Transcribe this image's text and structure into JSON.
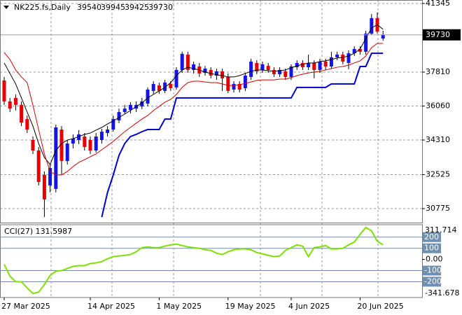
{
  "chart_data": [
    {
      "type": "candlestick",
      "title": "NK225.fs,Daily",
      "categories": [
        "27 Mar 2025",
        null,
        null,
        null,
        null,
        null,
        null,
        null,
        null,
        null,
        null,
        null,
        null,
        null,
        null,
        "14 Apr 2025",
        null,
        null,
        null,
        null,
        null,
        null,
        null,
        null,
        null,
        null,
        null,
        "1 May 2025",
        null,
        null,
        null,
        null,
        null,
        null,
        null,
        null,
        null,
        null,
        null,
        "19 May 2025",
        null,
        null,
        null,
        null,
        null,
        null,
        null,
        null,
        null,
        null,
        "4 Jun 2025",
        null,
        null,
        null,
        null,
        null,
        null,
        null,
        null,
        null,
        null,
        null,
        "20 Jun 2025",
        null,
        null,
        null,
        null
      ],
      "open": [
        37380,
        36300,
        36480,
        36120,
        35390,
        34310,
        33770,
        32510,
        31970,
        31790,
        34850,
        33230,
        34130,
        34310,
        34490,
        34310,
        33770,
        34310,
        34670,
        34850,
        35320,
        35750,
        35860,
        35930,
        36040,
        36190,
        36840,
        37120,
        36840,
        37200,
        37020,
        37920,
        38710,
        37920,
        38100,
        37770,
        37920,
        37630,
        37850,
        37560,
        36910,
        37200,
        36980,
        37560,
        38280,
        37920,
        38130,
        37920,
        37700,
        37850,
        37560,
        38060,
        38280,
        38060,
        38280,
        37920,
        38350,
        38100,
        38570,
        38710,
        38280,
        38780,
        39000,
        38860,
        39790,
        40590,
        39540
      ],
      "high": [
        37560,
        36480,
        36660,
        36300,
        35570,
        34490,
        33950,
        32690,
        33050,
        35100,
        35030,
        34310,
        34600,
        34820,
        34670,
        34490,
        34670,
        34890,
        35030,
        35570,
        35930,
        36120,
        36260,
        36300,
        36480,
        37020,
        37340,
        37270,
        37410,
        37340,
        38060,
        38860,
        38860,
        38350,
        38280,
        38130,
        38060,
        37990,
        37990,
        37740,
        37340,
        37340,
        37770,
        38500,
        38420,
        38350,
        38280,
        38060,
        38060,
        37990,
        38210,
        38420,
        38420,
        38710,
        38420,
        38500,
        38500,
        38860,
        38860,
        38860,
        38930,
        39140,
        39140,
        39940,
        40800,
        40880,
        39945
      ],
      "low": [
        36120,
        35750,
        35830,
        35030,
        34670,
        33590,
        31970,
        30340,
        31610,
        31610,
        32510,
        33050,
        33880,
        34100,
        33770,
        33590,
        33660,
        34130,
        34490,
        34740,
        35180,
        35650,
        35680,
        35750,
        35900,
        36040,
        36690,
        36690,
        36730,
        36840,
        36910,
        37770,
        37770,
        37740,
        37560,
        37630,
        37490,
        37410,
        36840,
        36730,
        36760,
        36760,
        36840,
        37410,
        37700,
        37770,
        37770,
        37560,
        37560,
        37410,
        37410,
        37920,
        37920,
        37920,
        37490,
        37770,
        37920,
        37990,
        38420,
        38210,
        37960,
        38640,
        38710,
        38710,
        39720,
        39800,
        39425
      ],
      "close": [
        36300,
        35930,
        36120,
        35210,
        34850,
        33770,
        32150,
        31250,
        32870,
        34960,
        33230,
        34130,
        34380,
        34600,
        33950,
        33770,
        34490,
        34740,
        34850,
        35390,
        35750,
        35930,
        36120,
        36120,
        36300,
        36910,
        37200,
        36840,
        37270,
        36980,
        37920,
        38750,
        37920,
        38210,
        37740,
        37990,
        37630,
        37850,
        37490,
        36840,
        37200,
        36910,
        37630,
        38350,
        37850,
        38210,
        37920,
        37700,
        37920,
        37560,
        38100,
        38280,
        38060,
        38280,
        37920,
        38350,
        38100,
        38570,
        38710,
        38350,
        38780,
        39000,
        38860,
        39790,
        40590,
        39900,
        39730
      ],
      "up_color": "#1414e6",
      "down_color": "#e60000",
      "wick_color": "#000000",
      "overlays": [
        {
          "color": "#000000",
          "line_width": 1,
          "values": [
            38280,
            37740,
            37200,
            36480,
            35750,
            35030,
            34130,
            33410,
            33050,
            33770,
            34130,
            34310,
            34380,
            34490,
            34600,
            34670,
            34820,
            34960,
            35140,
            35290,
            35470,
            35650,
            35830,
            36040,
            36220,
            36480,
            36660,
            36840,
            37020,
            37270,
            37630,
            37920,
            38060,
            37990,
            37920,
            37810,
            37740,
            37670,
            37630,
            37560,
            37560,
            37630,
            37740,
            37850,
            37920,
            37920,
            37880,
            37850,
            37880,
            37920,
            38030,
            38130,
            38210,
            38280,
            38280,
            38350,
            38390,
            38460,
            38530,
            38570,
            38640,
            38780,
            39000,
            39540,
            40080,
            40260,
            40010
          ]
        },
        {
          "color": "#d40000",
          "line_width": 1,
          "values": [
            38820,
            38460,
            37920,
            37560,
            37270,
            36110,
            34850,
            33590,
            32690,
            32510,
            32510,
            32690,
            32940,
            33160,
            33300,
            33450,
            33590,
            33810,
            34020,
            34240,
            34490,
            34740,
            34960,
            35180,
            35390,
            35570,
            35830,
            36040,
            36260,
            36400,
            36660,
            37020,
            37270,
            37340,
            37340,
            37300,
            37270,
            37270,
            37200,
            37120,
            37120,
            37160,
            37230,
            37300,
            37380,
            37410,
            37410,
            37410,
            37450,
            37450,
            37520,
            37630,
            37700,
            37770,
            37810,
            37850,
            37920,
            37990,
            38060,
            38100,
            38170,
            38280,
            38390,
            38640,
            39070,
            39290,
            39290
          ]
        },
        {
          "color": "#0000cc",
          "line_width": 2,
          "values": [
            null,
            null,
            null,
            null,
            null,
            null,
            null,
            null,
            null,
            null,
            null,
            null,
            null,
            null,
            null,
            null,
            null,
            30340,
            31610,
            32510,
            33520,
            34130,
            34490,
            34600,
            34740,
            34850,
            34850,
            34850,
            35390,
            35390,
            36480,
            36480,
            36480,
            36480,
            36480,
            36480,
            36480,
            36480,
            36480,
            36480,
            36480,
            36480,
            36480,
            36480,
            36480,
            36480,
            36480,
            36480,
            36480,
            36480,
            36480,
            37020,
            37020,
            37020,
            37020,
            37020,
            37020,
            37200,
            37200,
            37200,
            37200,
            37200,
            38100,
            38100,
            38780,
            38780,
            38780
          ]
        }
      ],
      "ylim": [
        30055,
        41525
      ],
      "yticks": [
        30775,
        32525,
        34310,
        36060,
        37810,
        41345
      ],
      "grid": true
    },
    {
      "type": "line",
      "title": "CCI(27) 131.5987",
      "color": "#7ee000",
      "values": [
        -44,
        -150,
        -200,
        -200,
        -256,
        -306,
        -294,
        -225,
        -144,
        -106,
        -100,
        -81,
        -62,
        -56,
        -56,
        -37,
        -31,
        -19,
        6,
        25,
        31,
        37,
        44,
        69,
        106,
        112,
        106,
        106,
        119,
        131,
        137,
        125,
        112,
        106,
        100,
        87,
        81,
        56,
        44,
        69,
        87,
        94,
        94,
        87,
        62,
        50,
        37,
        25,
        31,
        81,
        106,
        131,
        119,
        25,
        106,
        112,
        125,
        94,
        94,
        100,
        131,
        156,
        225,
        287,
        256,
        162,
        131.5987
      ],
      "ylim": [
        -341.678,
        311.714
      ],
      "yticks": [
        {
          "value": 0,
          "label": "0.00"
        }
      ],
      "levels": [
        200,
        100,
        -100,
        -200
      ],
      "level_color": "#6f8fb0"
    }
  ]
}
